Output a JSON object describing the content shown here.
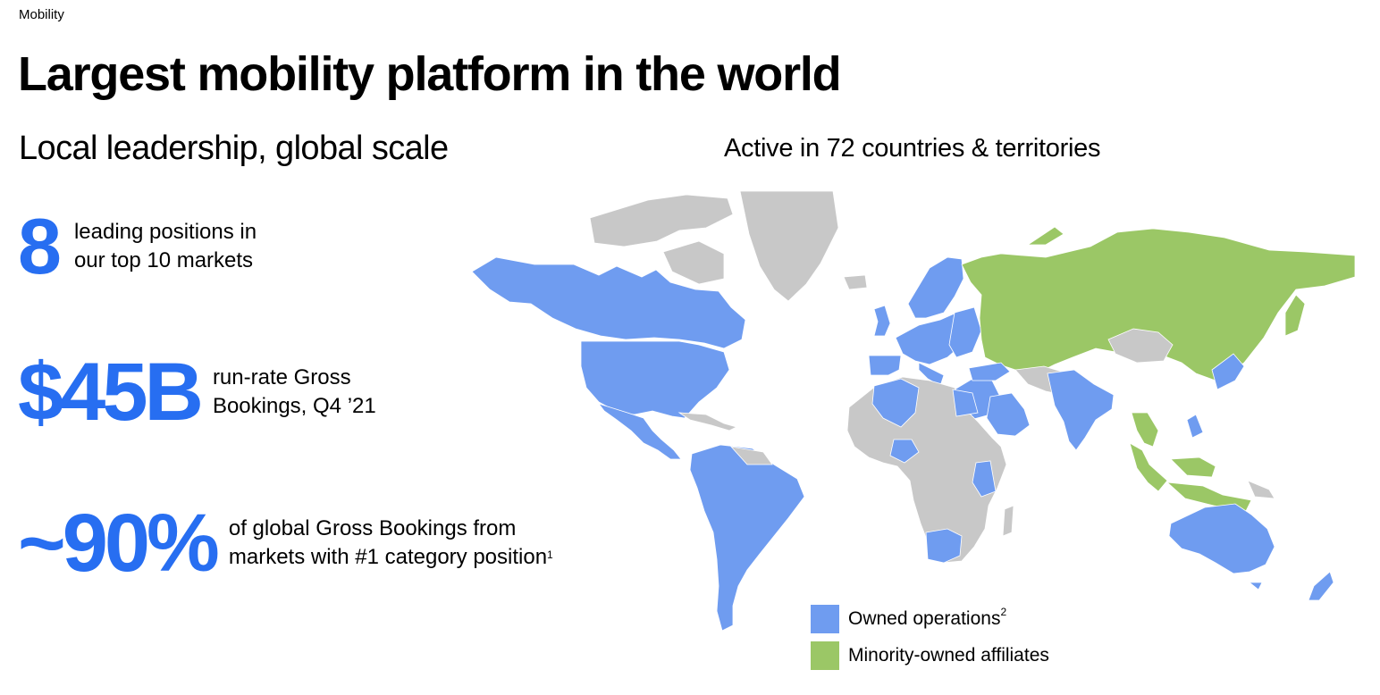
{
  "header": {
    "section": "Mobility",
    "title": "Largest mobility platform in the world",
    "subtitle": "Local leadership, global scale"
  },
  "stats": [
    {
      "value": "8",
      "lines": [
        "leading positions in",
        "our top 10 markets"
      ],
      "footnote": ""
    },
    {
      "value": "$45B",
      "lines": [
        "run-rate Gross",
        "Bookings, Q4 ’21"
      ],
      "footnote": ""
    },
    {
      "value": "~90%",
      "lines": [
        "of global Gross Bookings from",
        "markets with #1 category position"
      ],
      "footnote": "1"
    }
  ],
  "map": {
    "title": "Active in 72 countries & territories",
    "colors": {
      "owned": "#6f9cf0",
      "minority": "#9bc766",
      "inactive": "#c8c8c8",
      "accent": "#276ef1"
    },
    "legend": [
      {
        "label": "Owned operations",
        "footnote": "2",
        "color": "#6f9cf0"
      },
      {
        "label": "Minority-owned affiliates",
        "footnote": "",
        "color": "#9bc766"
      }
    ]
  }
}
